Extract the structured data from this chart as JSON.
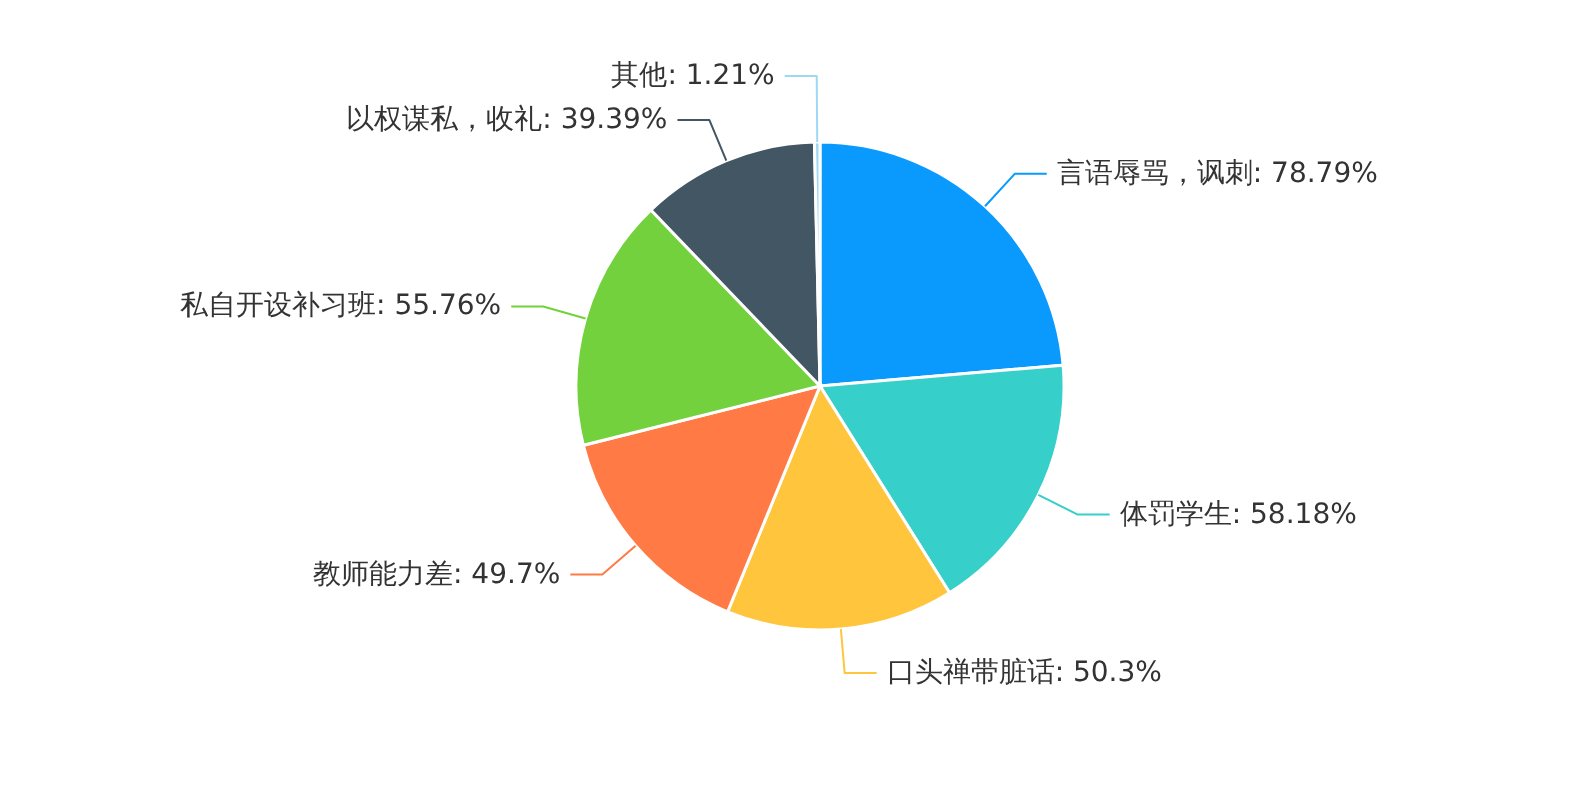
{
  "chart_data": {
    "type": "pie",
    "categories": [
      "言语辱骂，讽刺",
      "体罚学生",
      "口头禅带脏话",
      "教师能力差",
      "私自开设补习班",
      "以权谋私，收礼",
      "其他"
    ],
    "values": [
      78.79,
      58.18,
      50.3,
      49.7,
      55.76,
      39.39,
      1.21
    ],
    "value_labels": [
      "78.79%",
      "58.18%",
      "50.3%",
      "49.7%",
      "55.76%",
      "39.39%",
      "1.21%"
    ],
    "colors": [
      "#0a9afe",
      "#36cfc9",
      "#ffc53d",
      "#ff7a45",
      "#73d13d",
      "#435663",
      "#9fd8f4"
    ]
  }
}
